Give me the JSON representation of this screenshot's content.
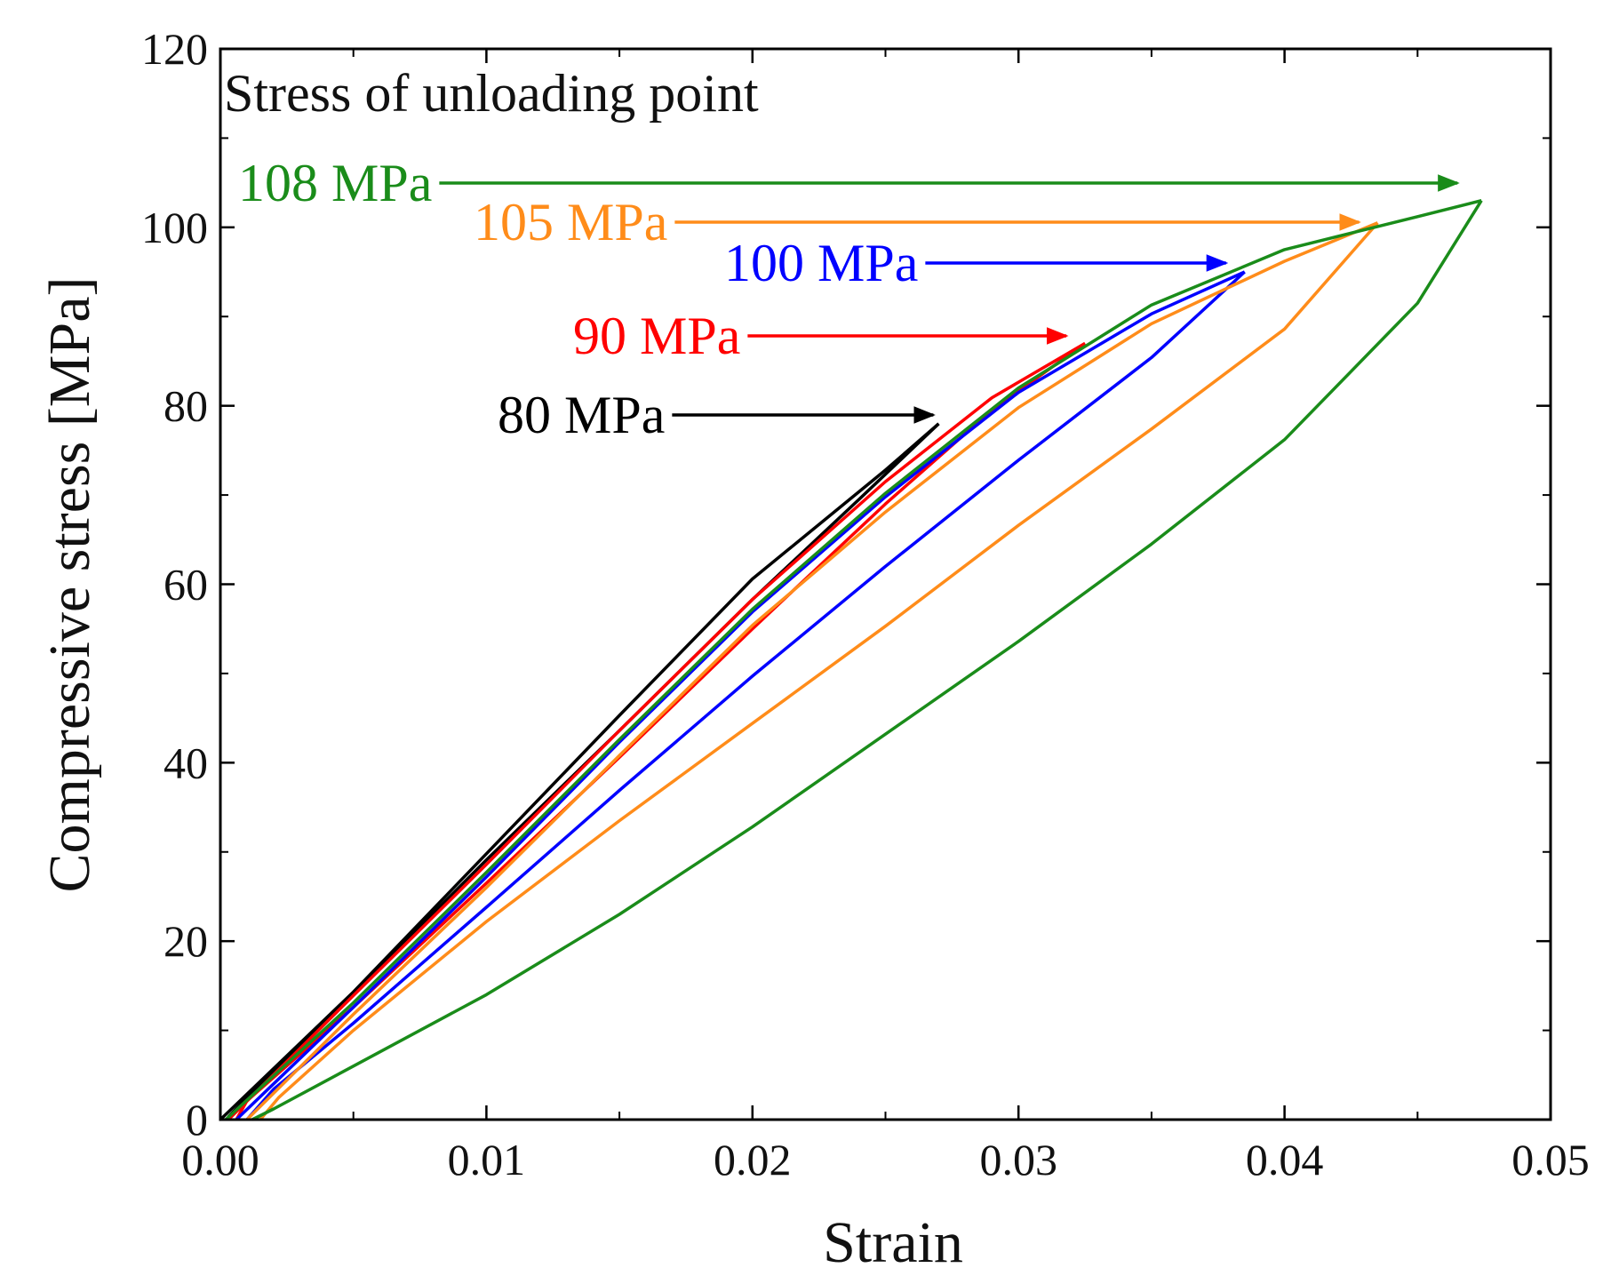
{
  "chart_data": {
    "type": "line",
    "title": "",
    "xlabel": "Strain",
    "ylabel": "Compressive stress [MPa]",
    "xlim": [
      0.0,
      0.05
    ],
    "ylim": [
      0,
      120
    ],
    "x_ticks": [
      "0.00",
      "0.01",
      "0.02",
      "0.03",
      "0.04",
      "0.05"
    ],
    "y_ticks": [
      "0",
      "20",
      "40",
      "60",
      "80",
      "100",
      "120"
    ],
    "grid": false,
    "legend": "none",
    "annotation_title": "Stress of unloading point",
    "series": [
      {
        "name": "80 MPa",
        "color": "#000000",
        "peak": [
          0.027,
          78
        ],
        "arrow_target": [
          0.0268,
          79
        ],
        "loading": [
          [
            0.0,
            0
          ],
          [
            0.005,
            14.3
          ],
          [
            0.01,
            29.8
          ],
          [
            0.015,
            45.3
          ],
          [
            0.02,
            60.6
          ],
          [
            0.025,
            72.8
          ],
          [
            0.027,
            78
          ]
        ],
        "unloading": [
          [
            0.027,
            78
          ],
          [
            0.024,
            69.5
          ],
          [
            0.02,
            58.3
          ],
          [
            0.015,
            43.6
          ],
          [
            0.01,
            29.1
          ],
          [
            0.005,
            14.2
          ],
          [
            0.0015,
            4
          ],
          [
            0.0003,
            0.3
          ]
        ]
      },
      {
        "name": "90 MPa",
        "color": "#ff0000",
        "peak": [
          0.0325,
          87
        ],
        "arrow_target": [
          0.0318,
          88
        ],
        "loading": [
          [
            0.0003,
            0
          ],
          [
            0.005,
            13.9
          ],
          [
            0.01,
            28.6
          ],
          [
            0.015,
            43.6
          ],
          [
            0.02,
            58.3
          ],
          [
            0.025,
            71.5
          ],
          [
            0.029,
            80.9
          ],
          [
            0.0325,
            87
          ]
        ],
        "unloading": [
          [
            0.0325,
            87
          ],
          [
            0.029,
            79.5
          ],
          [
            0.025,
            69
          ],
          [
            0.02,
            55
          ],
          [
            0.015,
            40.6
          ],
          [
            0.01,
            26.5
          ],
          [
            0.005,
            12.6
          ],
          [
            0.001,
            2.1
          ],
          [
            0.0006,
            0
          ]
        ]
      },
      {
        "name": "100 MPa",
        "color": "#0000ff",
        "peak": [
          0.0385,
          95
        ],
        "arrow_target": [
          0.0378,
          96
        ],
        "loading": [
          [
            0.0006,
            0
          ],
          [
            0.005,
            12.6
          ],
          [
            0.01,
            27.2
          ],
          [
            0.015,
            42.3
          ],
          [
            0.02,
            56.9
          ],
          [
            0.025,
            69.8
          ],
          [
            0.03,
            81.5
          ],
          [
            0.035,
            90.3
          ],
          [
            0.0385,
            95
          ]
        ],
        "unloading": [
          [
            0.0385,
            95
          ],
          [
            0.035,
            85.4
          ],
          [
            0.03,
            73.9
          ],
          [
            0.025,
            62
          ],
          [
            0.02,
            49.7
          ],
          [
            0.015,
            36.9
          ],
          [
            0.01,
            23.8
          ],
          [
            0.005,
            10.8
          ],
          [
            0.002,
            3.4
          ],
          [
            0.001,
            0
          ]
        ]
      },
      {
        "name": "105 MPa",
        "color": "#ff8c1a",
        "peak": [
          0.0435,
          100.5
        ],
        "arrow_target": [
          0.0428,
          101
        ],
        "loading": [
          [
            0.001,
            0
          ],
          [
            0.005,
            11.8
          ],
          [
            0.01,
            26
          ],
          [
            0.015,
            40.8
          ],
          [
            0.02,
            55.4
          ],
          [
            0.025,
            68.1
          ],
          [
            0.03,
            79.8
          ],
          [
            0.035,
            89.2
          ],
          [
            0.04,
            96.2
          ],
          [
            0.0435,
            100.5
          ]
        ],
        "unloading": [
          [
            0.0435,
            100.5
          ],
          [
            0.04,
            88.6
          ],
          [
            0.035,
            77.4
          ],
          [
            0.03,
            66.6
          ],
          [
            0.025,
            55.3
          ],
          [
            0.02,
            44.4
          ],
          [
            0.015,
            33.5
          ],
          [
            0.01,
            22.2
          ],
          [
            0.005,
            10
          ],
          [
            0.0022,
            2.5
          ],
          [
            0.0015,
            0
          ]
        ]
      },
      {
        "name": "108 MPa",
        "color": "#1a8c1a",
        "peak": [
          0.0474,
          103
        ],
        "arrow_target": [
          0.0465,
          104
        ],
        "loading": [
          [
            0.0002,
            0
          ],
          [
            0.005,
            13.1
          ],
          [
            0.01,
            27.7
          ],
          [
            0.015,
            42.6
          ],
          [
            0.02,
            57.2
          ],
          [
            0.025,
            70.2
          ],
          [
            0.03,
            82
          ],
          [
            0.035,
            91.3
          ],
          [
            0.04,
            97.5
          ],
          [
            0.045,
            101.2
          ],
          [
            0.0474,
            103
          ]
        ],
        "unloading": [
          [
            0.0474,
            103
          ],
          [
            0.045,
            91.5
          ],
          [
            0.04,
            76.2
          ],
          [
            0.035,
            64.5
          ],
          [
            0.03,
            53.6
          ],
          [
            0.025,
            43.2
          ],
          [
            0.02,
            32.8
          ],
          [
            0.015,
            23
          ],
          [
            0.01,
            14
          ],
          [
            0.005,
            6
          ],
          [
            0.002,
            1.2
          ],
          [
            0.0012,
            0
          ]
        ]
      }
    ]
  }
}
